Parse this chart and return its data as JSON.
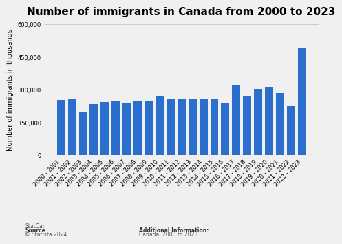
{
  "title": "Number of immigrants in Canada from 2000 to 2023",
  "ylabel": "Number of immigrants in thousands",
  "categories": [
    "2000 - 2001",
    "2001 - 2002",
    "2002 - 2003",
    "2003 - 2004",
    "2004 - 2005",
    "2005 - 2006",
    "2006 - 2007",
    "2007 - 2008",
    "2008 - 2009",
    "2009 - 2010",
    "2010 - 2011",
    "2011 - 2012",
    "2012 - 2013",
    "2013 - 2014",
    "2014 - 2015",
    "2015 - 2016",
    "2016 - 2017",
    "2017 - 2018",
    "2018 - 2019",
    "2019 - 2020",
    "2020 - 2021",
    "2021 - 2022",
    "2022 - 2023"
  ],
  "values": [
    252000,
    258000,
    197000,
    235000,
    242000,
    250000,
    236000,
    248000,
    248000,
    272000,
    260000,
    260000,
    258000,
    260000,
    260000,
    240000,
    320000,
    272000,
    303000,
    313000,
    285000,
    223000,
    490000
  ],
  "bar_color": "#2b6fce",
  "background_color": "#f0f0f0",
  "ylim": [
    0,
    600000
  ],
  "yticks": [
    0,
    150000,
    300000,
    450000,
    600000
  ],
  "title_fontsize": 11,
  "axis_label_fontsize": 7,
  "tick_fontsize": 6,
  "source_label": "Source",
  "source_text": "StatCan\n© Statista 2024",
  "additional_info_title": "Additional Information:",
  "additional_info_text": "Canada: 2000 to 2023",
  "grid_color": "#cccccc"
}
